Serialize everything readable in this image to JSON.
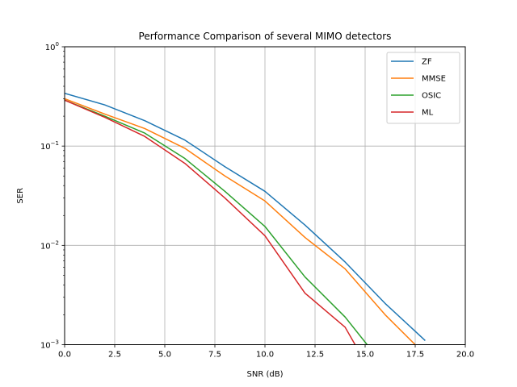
{
  "chart_data": {
    "type": "line",
    "title": "Performance Comparison of several MIMO detectors",
    "xlabel": "SNR (dB)",
    "ylabel": "SER",
    "xlim": [
      0,
      20
    ],
    "ylim": [
      0.001,
      1
    ],
    "yscale": "log",
    "grid": true,
    "legend_position": "top-right",
    "x_ticks": [
      "0.0",
      "2.5",
      "5.0",
      "7.5",
      "10.0",
      "12.5",
      "15.0",
      "17.5",
      "20.0"
    ],
    "y_ticks": [
      {
        "base": "10",
        "exp": "0"
      },
      {
        "base": "10",
        "exp": "−1"
      },
      {
        "base": "10",
        "exp": "−2"
      },
      {
        "base": "10",
        "exp": "−3"
      }
    ],
    "series": [
      {
        "name": "ZF",
        "color": "#1f77b4",
        "x": [
          0,
          2,
          4,
          6,
          8,
          10,
          12,
          14,
          16,
          18
        ],
        "y": [
          0.34,
          0.26,
          0.18,
          0.115,
          0.062,
          0.035,
          0.016,
          0.0068,
          0.0026,
          0.0011
        ]
      },
      {
        "name": "MMSE",
        "color": "#ff7f0e",
        "x": [
          0,
          2,
          4,
          6,
          8,
          10,
          12,
          14,
          16,
          17.5
        ],
        "y": [
          0.3,
          0.21,
          0.15,
          0.095,
          0.05,
          0.028,
          0.012,
          0.0058,
          0.002,
          0.001
        ]
      },
      {
        "name": "OSIC",
        "color": "#2ca02c",
        "x": [
          0,
          2,
          4,
          6,
          8,
          10,
          12,
          14,
          15.1
        ],
        "y": [
          0.29,
          0.2,
          0.135,
          0.075,
          0.035,
          0.0155,
          0.0048,
          0.0019,
          0.001
        ]
      },
      {
        "name": "ML",
        "color": "#d62728",
        "x": [
          0,
          2,
          4,
          6,
          8,
          10,
          12,
          14,
          14.5
        ],
        "y": [
          0.29,
          0.195,
          0.125,
          0.067,
          0.03,
          0.0125,
          0.0033,
          0.0015,
          0.001
        ]
      }
    ]
  }
}
